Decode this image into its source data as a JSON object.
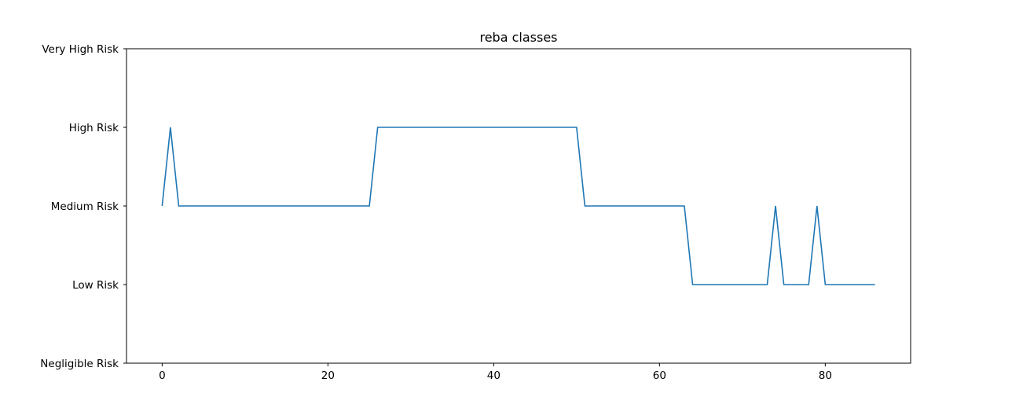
{
  "chart_data": {
    "type": "line",
    "title": "reba classes",
    "xlabel": "",
    "ylabel": "",
    "xlim": [
      -4.3,
      90.3
    ],
    "ylim": [
      0,
      4
    ],
    "x_ticks": [
      0,
      20,
      40,
      60,
      80
    ],
    "y_ticks": [
      {
        "value": 0,
        "label": "Negligible Risk"
      },
      {
        "value": 1,
        "label": "Low Risk"
      },
      {
        "value": 2,
        "label": "Medium Risk"
      },
      {
        "value": 3,
        "label": "High Risk"
      },
      {
        "value": 4,
        "label": "Very High Risk"
      }
    ],
    "grid": false,
    "series": [
      {
        "color": "#1f77b4",
        "x": [
          0,
          1,
          2,
          3,
          4,
          5,
          6,
          7,
          8,
          9,
          10,
          11,
          12,
          13,
          14,
          15,
          16,
          17,
          18,
          19,
          20,
          21,
          22,
          23,
          24,
          25,
          26,
          27,
          28,
          29,
          30,
          31,
          32,
          33,
          34,
          35,
          36,
          37,
          38,
          39,
          40,
          41,
          42,
          43,
          44,
          45,
          46,
          47,
          48,
          49,
          50,
          51,
          52,
          53,
          54,
          55,
          56,
          57,
          58,
          59,
          60,
          61,
          62,
          63,
          64,
          65,
          66,
          67,
          68,
          69,
          70,
          71,
          72,
          73,
          74,
          75,
          76,
          77,
          78,
          79,
          80,
          81,
          82,
          83,
          84,
          85,
          86
        ],
        "y": [
          2,
          3,
          2,
          2,
          2,
          2,
          2,
          2,
          2,
          2,
          2,
          2,
          2,
          2,
          2,
          2,
          2,
          2,
          2,
          2,
          2,
          2,
          2,
          2,
          2,
          2,
          3,
          3,
          3,
          3,
          3,
          3,
          3,
          3,
          3,
          3,
          3,
          3,
          3,
          3,
          3,
          3,
          3,
          3,
          3,
          3,
          3,
          3,
          3,
          3,
          3,
          2,
          2,
          2,
          2,
          2,
          2,
          2,
          2,
          2,
          2,
          2,
          2,
          2,
          1,
          1,
          1,
          1,
          1,
          1,
          1,
          1,
          1,
          1,
          2,
          1,
          1,
          1,
          1,
          2,
          1,
          1,
          1,
          1,
          1,
          1,
          1
        ]
      }
    ]
  }
}
